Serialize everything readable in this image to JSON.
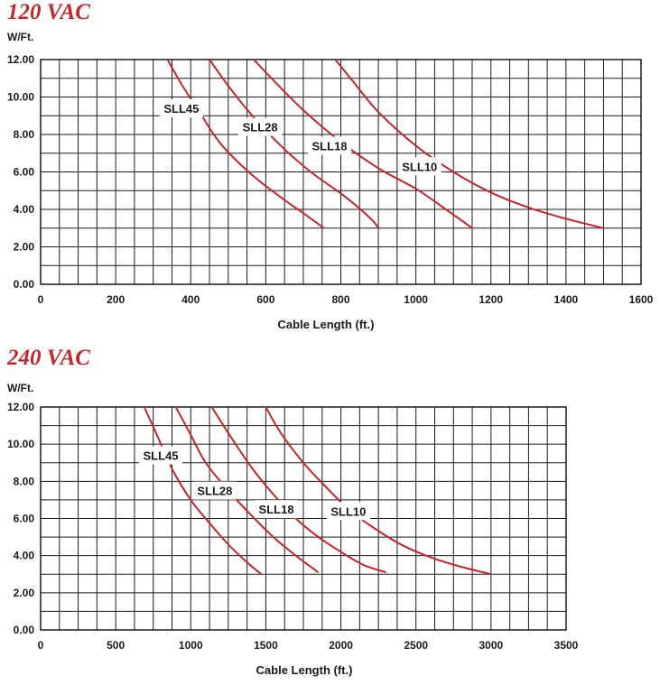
{
  "chart_data": [
    {
      "type": "line",
      "title": "120 VAC",
      "ylabel": "W/Ft.",
      "xlabel": "Cable Length (ft.)",
      "xlim": [
        0,
        1600
      ],
      "ylim": [
        0,
        12
      ],
      "x_ticks": [
        "0",
        "200",
        "400",
        "600",
        "800",
        "1000",
        "1200",
        "1400",
        "1600"
      ],
      "y_ticks": [
        "0.00",
        "2.00",
        "4.00",
        "6.00",
        "8.00",
        "10.00",
        "12.00"
      ],
      "grid": true,
      "line_color": "#c1272d",
      "series": [
        {
          "name": "SLL45",
          "label_at": [
            375,
            9.4
          ],
          "points": [
            [
              338,
              12
            ],
            [
              375,
              10.7
            ],
            [
              420,
              9.3
            ],
            [
              480,
              7.5
            ],
            [
              560,
              5.9
            ],
            [
              650,
              4.5
            ],
            [
              700,
              3.8
            ],
            [
              755,
              3.0
            ]
          ]
        },
        {
          "name": "SLL28",
          "label_at": [
            585,
            8.4
          ],
          "points": [
            [
              450,
              12
            ],
            [
              500,
              10.6
            ],
            [
              560,
              9.1
            ],
            [
              640,
              7.4
            ],
            [
              720,
              6.0
            ],
            [
              810,
              4.7
            ],
            [
              880,
              3.5
            ],
            [
              900,
              3.0
            ]
          ]
        },
        {
          "name": "SLL18",
          "label_at": [
            770,
            7.4
          ],
          "points": [
            [
              568,
              12
            ],
            [
              620,
              10.9
            ],
            [
              700,
              9.3
            ],
            [
              800,
              7.6
            ],
            [
              900,
              6.2
            ],
            [
              1000,
              5.1
            ],
            [
              1080,
              4.0
            ],
            [
              1150,
              3.0
            ]
          ]
        },
        {
          "name": "SLL10",
          "label_at": [
            1010,
            6.3
          ],
          "points": [
            [
              785,
              12
            ],
            [
              830,
              10.9
            ],
            [
              900,
              9.2
            ],
            [
              1000,
              7.4
            ],
            [
              1100,
              6.0
            ],
            [
              1200,
              4.9
            ],
            [
              1300,
              4.1
            ],
            [
              1400,
              3.5
            ],
            [
              1500,
              3.0
            ]
          ]
        }
      ]
    },
    {
      "type": "line",
      "title": "240 VAC",
      "ylabel": "W/Ft.",
      "xlabel": "Cable Length (ft.)",
      "xlim": [
        0,
        3500
      ],
      "ylim": [
        0,
        12
      ],
      "x_ticks": [
        "0",
        "500",
        "1000",
        "1500",
        "2000",
        "2500",
        "3000",
        "3500"
      ],
      "y_ticks": [
        "0.00",
        "2.00",
        "4.00",
        "6.00",
        "8.00",
        "10.00",
        "12.00"
      ],
      "grid": true,
      "line_color": "#c1272d",
      "series": [
        {
          "name": "SLL45",
          "label_at": [
            800,
            9.4
          ],
          "points": [
            [
              690,
              12
            ],
            [
              780,
              10.4
            ],
            [
              880,
              8.6
            ],
            [
              1000,
              7.0
            ],
            [
              1120,
              5.8
            ],
            [
              1250,
              4.6
            ],
            [
              1380,
              3.6
            ],
            [
              1470,
              3.0
            ]
          ]
        },
        {
          "name": "SLL28",
          "label_at": [
            1160,
            7.5
          ],
          "points": [
            [
              900,
              12
            ],
            [
              1000,
              10.5
            ],
            [
              1100,
              9.0
            ],
            [
              1250,
              7.5
            ],
            [
              1400,
              6.2
            ],
            [
              1550,
              5.0
            ],
            [
              1700,
              4.0
            ],
            [
              1850,
              3.1
            ]
          ]
        },
        {
          "name": "SLL18",
          "label_at": [
            1570,
            6.5
          ],
          "points": [
            [
              1140,
              12
            ],
            [
              1250,
              10.6
            ],
            [
              1400,
              8.8
            ],
            [
              1550,
              7.3
            ],
            [
              1700,
              6.0
            ],
            [
              1850,
              5.0
            ],
            [
              2000,
              4.2
            ],
            [
              2150,
              3.5
            ],
            [
              2300,
              3.1
            ]
          ]
        },
        {
          "name": "SLL10",
          "label_at": [
            2050,
            6.4
          ],
          "points": [
            [
              1500,
              12
            ],
            [
              1600,
              10.6
            ],
            [
              1750,
              9.0
            ],
            [
              1900,
              7.7
            ],
            [
              2050,
              6.5
            ],
            [
              2200,
              5.6
            ],
            [
              2400,
              4.6
            ],
            [
              2600,
              3.9
            ],
            [
              2800,
              3.4
            ],
            [
              3000,
              3.0
            ]
          ]
        }
      ]
    }
  ]
}
